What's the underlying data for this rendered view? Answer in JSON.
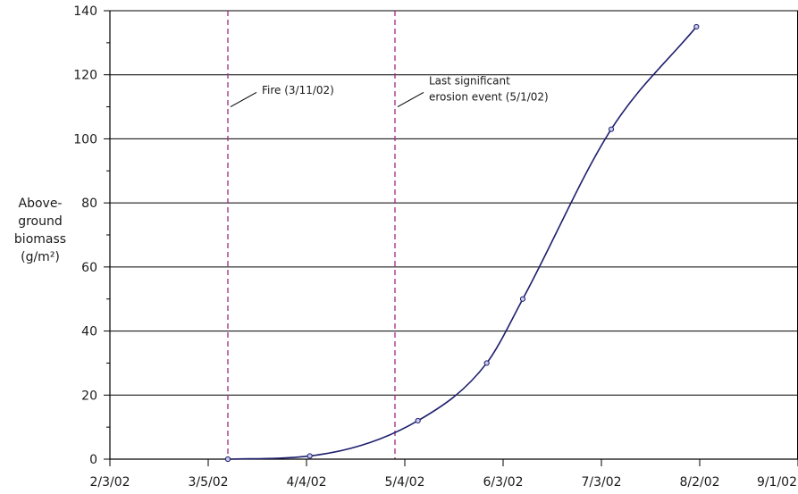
{
  "chart_data": {
    "type": "line",
    "ylabel_lines": [
      "Above-",
      "ground",
      "biomass",
      "(g/m²)"
    ],
    "ylim": [
      0,
      140
    ],
    "yticks": [
      0,
      20,
      40,
      60,
      80,
      100,
      120,
      140
    ],
    "ytick_labels": [
      "0",
      "20",
      "40",
      "60",
      "80",
      "100",
      "120",
      "140"
    ],
    "xlim": [
      "2002-02-03",
      "2002-09-01"
    ],
    "xticks": [
      "2002-02-03",
      "2002-03-05",
      "2002-04-04",
      "2002-05-04",
      "2002-06-03",
      "2002-07-03",
      "2002-08-02",
      "2002-09-01"
    ],
    "xtick_labels": [
      "2/3/02",
      "3/5/02",
      "4/4/02",
      "5/4/02",
      "6/3/02",
      "7/3/02",
      "8/2/02",
      "9/1/02"
    ],
    "grid": "horizontal",
    "legend": "none",
    "colors": {
      "series": "#1f1f6e",
      "event_line": "#a0287f",
      "grid": "#000000"
    },
    "series": [
      {
        "x": [
          "2002-03-11",
          "2002-04-05",
          "2002-05-08",
          "2002-05-29",
          "2002-06-09",
          "2002-07-06",
          "2002-08-01"
        ],
        "values": [
          0,
          1,
          12,
          30,
          50,
          103,
          135
        ]
      }
    ],
    "events": [
      {
        "date": "2002-03-11",
        "label_lines": [
          "Fire (3/11/02)"
        ]
      },
      {
        "date": "2002-05-01",
        "label_lines": [
          "Last significant",
          "erosion event (5/1/02)"
        ]
      }
    ]
  }
}
